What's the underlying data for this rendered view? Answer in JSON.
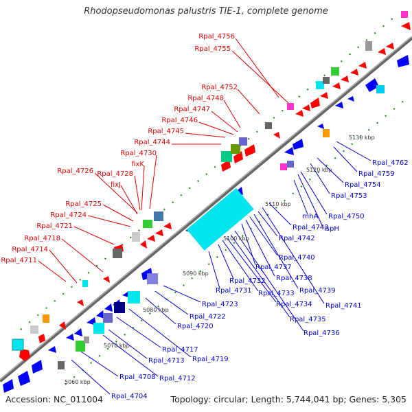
{
  "title": "Rhodopseudomonas palustris TIE-1, complete genome",
  "accession": "Accession: NC_011004",
  "summary": "Topology: circular; Length: 5,744,041 bp; Genes: 5,305",
  "colors": {
    "red_label": "#dd0000",
    "blue_label": "#0000cc",
    "backbone": "#808080",
    "forward_cds": "#ff0000",
    "reverse_cds": "#0000ff",
    "cyan": "#00e5ee",
    "green": "#33cc33",
    "dark_navy": "#000080",
    "orange": "#ff9900",
    "gray": "#999999",
    "purple": "#6666cc",
    "magenta": "#ff33cc",
    "tick_green": "#228b22"
  },
  "ticks": [
    "5060 kbp",
    "5070 kbp",
    "5080 kbp",
    "5090 kbp",
    "5100 kbp",
    "5110 kbp",
    "5120 kbp",
    "5130 kbp"
  ],
  "labels_top": [
    "Rpal_4756",
    "Rpal_4755",
    "Rpal_4752",
    "Rpal_4748",
    "Rpal_4747",
    "Rpal_4746",
    "Rpal_4745",
    "Rpal_4744",
    "Rpal_4730",
    "fixK",
    "Rpal_4728",
    "Rpal_4726",
    "fixJ",
    "Rpal_4725",
    "Rpal_4724",
    "Rpal_4721",
    "Rpal_4718",
    "Rpal_4714",
    "Rpal_4711"
  ],
  "labels_bottom": [
    "Rpal_4762",
    "Rpal_4759",
    "Rpal_4754",
    "Rpal_4753",
    "Rpal_4750",
    "ispH",
    "rnhA",
    "Rpal_4743",
    "Rpal_4742",
    "Rpal_4740",
    "Rpal_4737",
    "Rpal_4738",
    "Rpal_4739",
    "Rpal_4741",
    "Rpal_4731",
    "Rpal_4732",
    "Rpal_4733",
    "Rpal_4734",
    "Rpal_4735",
    "Rpal_4736",
    "Rpal_4723",
    "Rpal_4722",
    "Rpal_4720",
    "Rpal_4717",
    "Rpal_4719",
    "Rpal_4713",
    "Rpal_4712",
    "Rpal_4708",
    "Rpal_4704"
  ]
}
